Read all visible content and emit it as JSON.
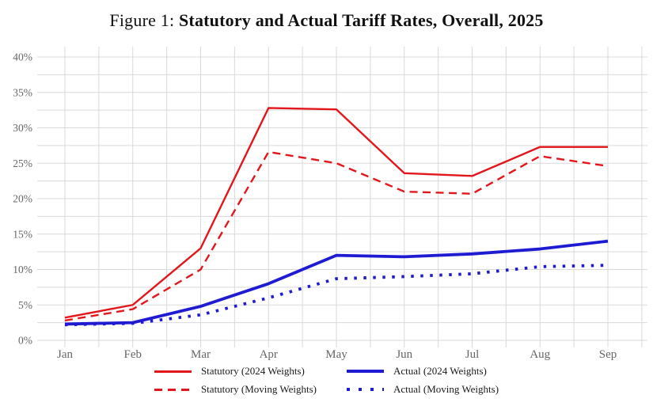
{
  "title": {
    "prefix": "Figure 1: ",
    "main": "Statutory and Actual Tariff Rates, Overall, 2025"
  },
  "colors": {
    "statutory": "#e3161b",
    "actual": "#1e1bd2",
    "grid": "#d9d9d9",
    "tick_text": "#666666"
  },
  "chart_data": {
    "type": "line",
    "title": "Figure 1: Statutory and Actual Tariff Rates, Overall, 2025",
    "categories": [
      "Jan",
      "Feb",
      "Mar",
      "Apr",
      "May",
      "Jun",
      "Jul",
      "Aug",
      "Sep"
    ],
    "y_tick_labels": [
      "0%",
      "5%",
      "10%",
      "15%",
      "20%",
      "25%",
      "30%",
      "35%",
      "40%"
    ],
    "ylim": [
      0,
      42.5
    ],
    "y_major_step": 5,
    "y_minor_step": 2.5,
    "grid": "on (light gray; horizontal every 2.5%, vertical at months and half-months)",
    "legend_position": "bottom-center, two columns",
    "series": [
      {
        "name": "Statutory (2024 Weights)",
        "color_key": "statutory",
        "style": "solid",
        "width": 2.4,
        "values": [
          3.2,
          5.0,
          13.0,
          32.8,
          32.6,
          23.6,
          23.2,
          27.3,
          27.3
        ]
      },
      {
        "name": "Statutory (Moving Weights)",
        "color_key": "statutory",
        "style": "dashed",
        "width": 2.4,
        "values": [
          2.8,
          4.4,
          10.0,
          26.6,
          25.0,
          21.0,
          20.7,
          26.0,
          24.6
        ]
      },
      {
        "name": "Actual (2024 Weights)",
        "color_key": "actual",
        "style": "solid",
        "width": 3.8,
        "values": [
          2.3,
          2.5,
          4.8,
          8.0,
          12.0,
          11.8,
          12.2,
          12.9,
          14.0
        ]
      },
      {
        "name": "Actual (Moving Weights)",
        "color_key": "actual",
        "style": "dotted",
        "width": 3.8,
        "values": [
          2.2,
          2.4,
          3.6,
          6.0,
          8.7,
          9.0,
          9.4,
          10.4,
          10.6
        ]
      }
    ]
  }
}
